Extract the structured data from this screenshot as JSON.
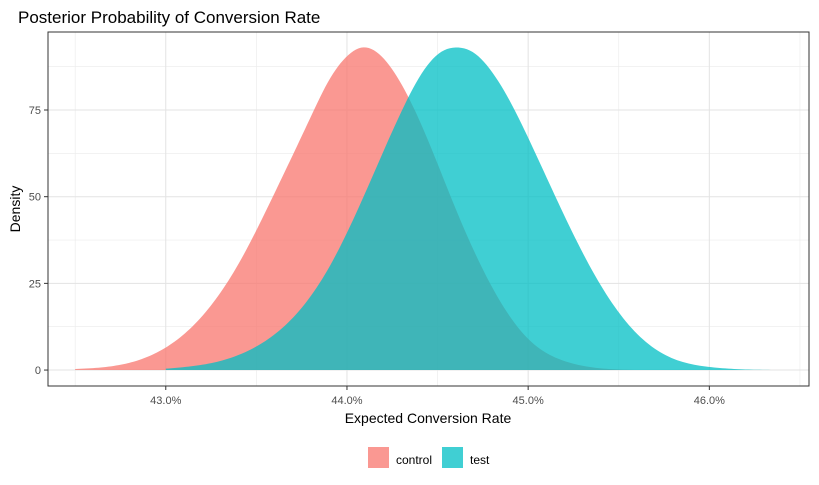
{
  "chart_data": {
    "type": "area",
    "title": "Posterior Probability of Conversion Rate",
    "xlabel": "Expected Conversion Rate",
    "ylabel": "Density",
    "xlim": [
      42.35,
      46.55
    ],
    "ylim": [
      -4.6,
      97.5
    ],
    "x_ticks": [
      43.0,
      44.0,
      45.0,
      46.0
    ],
    "x_tick_labels": [
      "43.0%",
      "44.0%",
      "45.0%",
      "46.0%"
    ],
    "y_ticks": [
      0,
      25,
      50,
      75
    ],
    "y_tick_labels": [
      "0",
      "25",
      "50",
      "75"
    ],
    "grid": true,
    "legend_position": "bottom",
    "series": [
      {
        "name": "control",
        "color": "#F8766D",
        "x": [
          42.5,
          42.8,
          43.0,
          43.2,
          43.4,
          43.6,
          43.8,
          43.9,
          44.0,
          44.08,
          44.2,
          44.3,
          44.4,
          44.5,
          44.6,
          44.8,
          45.0,
          45.2,
          45.4,
          45.6
        ],
        "density": [
          0.3,
          2.1,
          6.5,
          15.5,
          30.5,
          51.0,
          73.0,
          83.5,
          90.5,
          93.0,
          90.0,
          82.5,
          72.0,
          59.5,
          46.5,
          24.0,
          9.0,
          2.6,
          0.5,
          0.0
        ]
      },
      {
        "name": "test",
        "color": "#00BFC4",
        "x": [
          43.0,
          43.3,
          43.5,
          43.7,
          43.9,
          44.1,
          44.3,
          44.4,
          44.5,
          44.62,
          44.7,
          44.8,
          44.9,
          45.0,
          45.2,
          45.4,
          45.6,
          45.8,
          46.0,
          46.25,
          46.45
        ],
        "density": [
          0.4,
          2.6,
          6.8,
          15.0,
          29.5,
          51.0,
          74.5,
          84.5,
          91.0,
          93.0,
          91.5,
          86.0,
          77.5,
          67.0,
          44.5,
          24.5,
          10.5,
          3.3,
          0.9,
          0.1,
          0.0
        ]
      }
    ]
  }
}
